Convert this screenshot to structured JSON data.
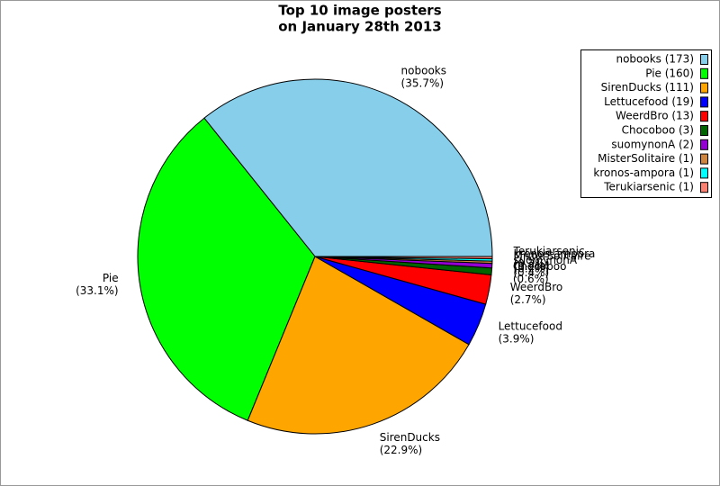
{
  "chart_data": {
    "type": "pie",
    "title": [
      "Top 10 image posters",
      "on January 28th 2013"
    ],
    "categories": [
      "nobooks",
      "Pie",
      "SirenDucks",
      "Lettucefood",
      "WeerdBro",
      "Chocoboo",
      "suomynonA",
      "MisterSolitaire",
      "kronos-ampora",
      "Terukiarsenic"
    ],
    "values": [
      173,
      160,
      111,
      19,
      13,
      3,
      2,
      1,
      1,
      1
    ],
    "value_labels": [
      "(35.7%)",
      "(33.1%)",
      "(22.9%)",
      "(3.9%)",
      "(2.7%)",
      "(0.6%)",
      "(0.4%)",
      "(0.2%)",
      "(0.2%)",
      "(0.2%)"
    ],
    "legend_labels": [
      "nobooks (173)",
      "Pie (160)",
      "SirenDucks (111)",
      "Lettucefood (19)",
      "WeerdBro (13)",
      "Chocoboo (3)",
      "suomynonA (2)",
      "MisterSolitaire (1)",
      "kronos-ampora (1)",
      "Terukiarsenic (1)"
    ],
    "colors": [
      "#87ceeb",
      "#00ff00",
      "#ffa500",
      "#0000ff",
      "#ff0000",
      "#006400",
      "#9400d3",
      "#cd853f",
      "#00ffff",
      "#fa8072"
    ],
    "legend": "upper right"
  }
}
